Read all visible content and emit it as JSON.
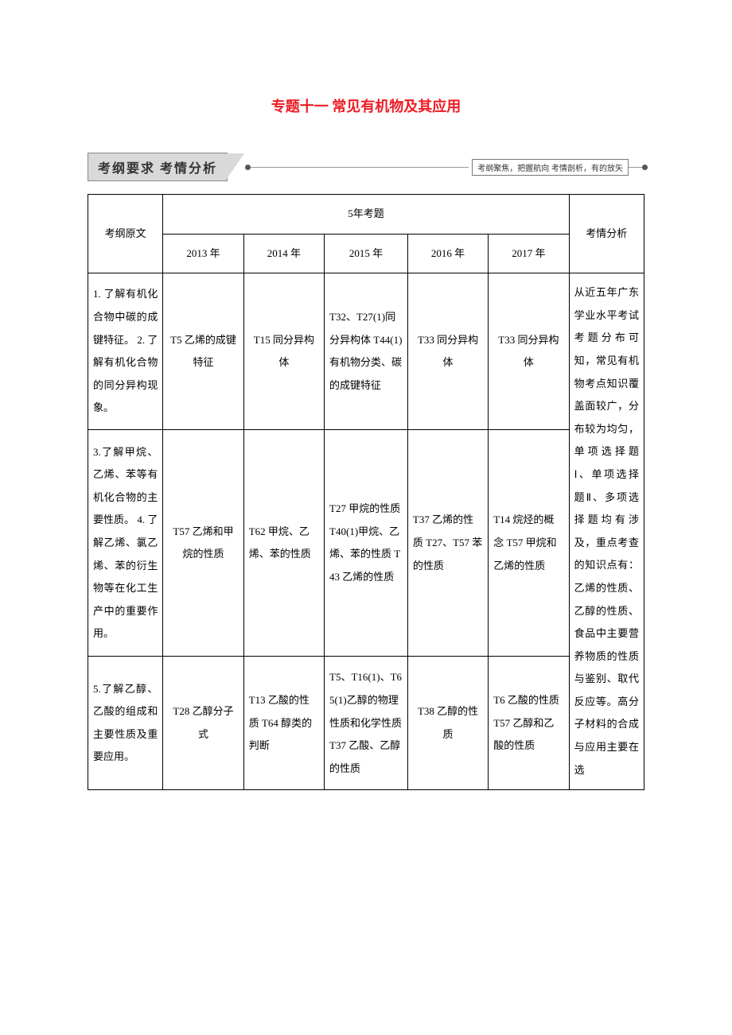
{
  "title": "专题十一 常见有机物及其应用",
  "banner": {
    "left": "考纲要求  考情分析",
    "right": "考纲聚焦，把握航向  考情剖析，有的放矢"
  },
  "table": {
    "header": {
      "col0": "考纲原文",
      "span5": "5年考题",
      "y2013": "2013 年",
      "y2014": "2014 年",
      "y2015": "2015 年",
      "y2016": "2016 年",
      "y2017": "2017 年",
      "col6": "考情分析"
    },
    "rows": {
      "r1": {
        "syllabus": "1. 了解有机化合物中碳的成键特征。\n2. 了解有机化合物的同分异构现象。",
        "y2013": "T5 乙烯的成键特征",
        "y2014": "T15 同分异构体",
        "y2015": "T32、T27(1)同分异构体 T44(1)有机物分类、碳的成键特征",
        "y2016": "T33 同分异构体",
        "y2017": "T33 同分异构体"
      },
      "r2": {
        "syllabus": "3.了解甲烷、乙烯、苯等有机化合物的主要性质。\n\n4. 了解乙烯、氯乙烯、苯的衍生物等在化工生产中的重要作用。",
        "y2013": "T57 乙烯和甲烷的性质",
        "y2014": "T62 甲烷、乙烯、苯的性质",
        "y2015": "T27 甲烷的性质 T40(1)甲烷、乙烯、苯的性质 T43 乙烯的性质",
        "y2016": "T37 乙烯的性质 T27、T57 苯的性质",
        "y2017": "T14 烷烃的概念 T57 甲烷和乙烯的性质"
      },
      "r3": {
        "syllabus": "5.了解乙醇、乙酸的组成和主要性质及重要应用。",
        "y2013": "T28 乙醇分子式",
        "y2014": "T13 乙酸的性质 T64 醇类的判断",
        "y2015": "T5、T16(1)、T65(1)乙醇的物理性质和化学性质 T37 乙酸、乙醇的性质",
        "y2016": "T38 乙醇的性质",
        "y2017": "T6 乙酸的性质 T57 乙醇和乙酸的性质"
      },
      "analysis": "从近五年广东学业水平考试考题分布可知，常见有机物考点知识覆盖面较广，分布较为均匀，单项选择题Ⅰ、单项选择题Ⅱ、多项选择题均有涉及，重点考查的知识点有：乙烯的性质、乙醇的性质、食品中主要营养物质的性质与鉴别、取代反应等。高分子材料的合成与应用主要在选"
    }
  }
}
